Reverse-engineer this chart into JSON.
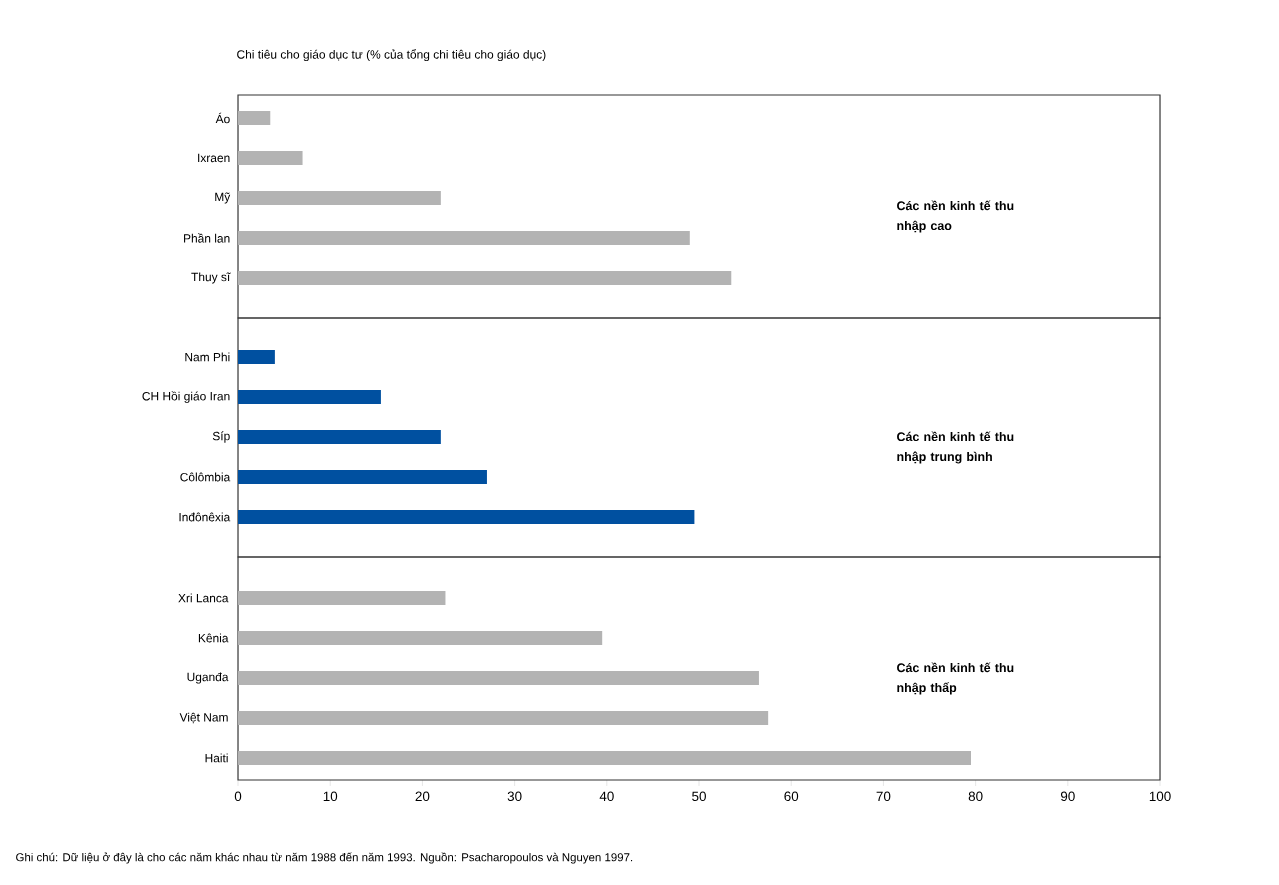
{
  "chart_data": [
    {
      "type": "bar",
      "orientation": "horizontal",
      "title": "Chi tiêu cho giáo dục tư (% của tổng chi tiêu cho giáo dục)",
      "categories": [
        "Áo",
        "Ixraen",
        "Mỹ",
        "Phần lan",
        "Thuy sĩ"
      ],
      "values": [
        3.5,
        7,
        22,
        49,
        53.5
      ],
      "color": "#b3b3b3",
      "xlim": [
        0,
        100
      ],
      "tick_labels": "y",
      "annotations": [
        "Các nền kinh tế thu nhập cao"
      ]
    },
    {
      "type": "bar",
      "orientation": "horizontal",
      "categories": [
        "Nam Phi",
        "CH Hồi giáo Iran",
        "Síp",
        "Côlômbia",
        "Inđônêxia"
      ],
      "values": [
        4,
        15.5,
        22,
        27,
        49.5
      ],
      "color": "#0050a0",
      "xlim": [
        0,
        100
      ],
      "tick_labels": "y",
      "annotations": [
        "Các nền kinh tế thu nhập trung bình"
      ]
    },
    {
      "type": "bar",
      "orientation": "horizontal",
      "categories": [
        "Xri Lanca",
        "Kênia",
        "Uganđa",
        "Việt Nam",
        "Haiti"
      ],
      "values": [
        22.5,
        39.5,
        56.5,
        57.5,
        79.5
      ],
      "color": "#b3b3b3",
      "xlim": [
        0,
        100
      ],
      "xticks": [
        0,
        10,
        20,
        30,
        40,
        50,
        60,
        70,
        80,
        90,
        100
      ],
      "annotations": [
        "Các nền kinh tế thu nhập thấp",
        "Ghi chú: Dữ liệu ở đây là cho các năm khác nhau từ năm 1988 đến năm 1993. Nguồn: Psacharopoulos và Nguyen 1997."
      ]
    }
  ]
}
